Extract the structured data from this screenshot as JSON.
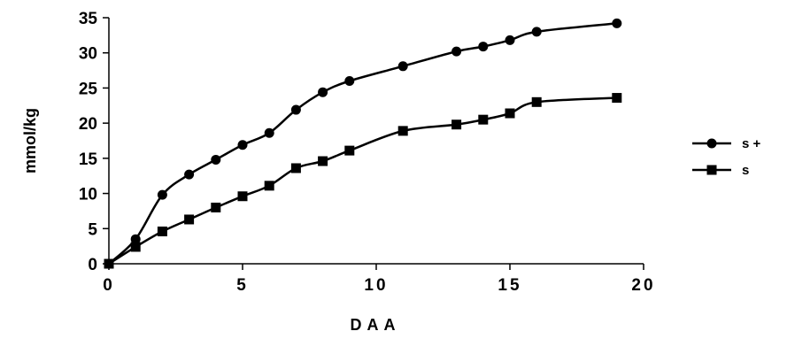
{
  "chart_data": {
    "type": "line",
    "xlabel": "DAA",
    "ylabel": "mmol/kg",
    "xlim": [
      0,
      20
    ],
    "ylim": [
      0,
      35
    ],
    "xticks": [
      "0",
      "5",
      "10",
      "15",
      "20"
    ],
    "yticks": [
      "0",
      "5",
      "10",
      "15",
      "20",
      "25",
      "30",
      "35"
    ],
    "grid": false,
    "legend_position": "right",
    "series": [
      {
        "name": "s +",
        "marker": "circle",
        "x": [
          0,
          1,
          2,
          3,
          4,
          5,
          6,
          7,
          8,
          9,
          11,
          13,
          14,
          15,
          16,
          19
        ],
        "values": [
          0,
          3.5,
          9.8,
          12.7,
          14.8,
          16.9,
          18.6,
          21.9,
          24.4,
          26.0,
          28.1,
          30.2,
          30.9,
          31.8,
          33.0,
          34.2
        ]
      },
      {
        "name": "s",
        "marker": "square",
        "x": [
          0,
          1,
          2,
          3,
          4,
          5,
          6,
          7,
          8,
          9,
          11,
          13,
          14,
          15,
          16,
          19
        ],
        "values": [
          0,
          2.4,
          4.6,
          6.3,
          8.0,
          9.6,
          11.1,
          13.6,
          14.6,
          16.1,
          18.9,
          19.8,
          20.5,
          21.4,
          23.0,
          23.6
        ]
      }
    ]
  }
}
